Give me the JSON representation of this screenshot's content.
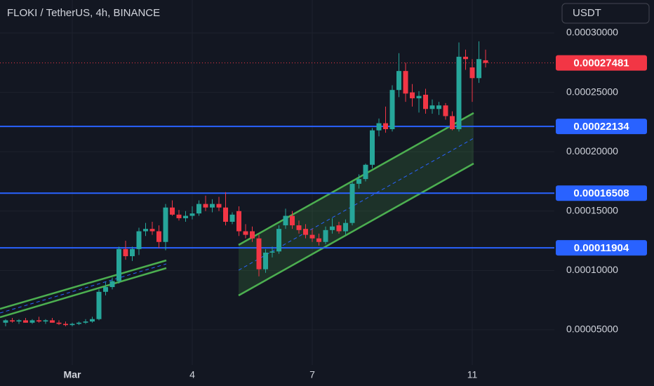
{
  "chart_data": {
    "type": "candlestick",
    "title": "FLOKI / TetherUS, 4h, BINANCE",
    "currency": "USDT",
    "categories": [
      null,
      null,
      null,
      null,
      null,
      null,
      null,
      null,
      null,
      null,
      "Mar",
      null,
      null,
      null,
      null,
      null,
      null,
      null,
      null,
      null,
      null,
      null,
      null,
      null,
      null,
      null,
      null,
      null,
      "4",
      null,
      null,
      null,
      null,
      null,
      null,
      null,
      null,
      null,
      null,
      null,
      null,
      null,
      null,
      null,
      null,
      null,
      "7",
      null,
      null,
      null,
      null,
      null,
      null,
      null,
      null,
      null,
      null,
      null,
      null,
      null,
      null,
      null,
      null,
      null,
      null,
      null,
      null,
      null,
      null,
      null,
      "11",
      null,
      null
    ],
    "open": [
      5.6e-05,
      5.8e-05,
      5.7e-05,
      5.8e-05,
      5.6e-05,
      5.8e-05,
      5.7e-05,
      5.8e-05,
      5.6e-05,
      5.5e-05,
      5.4e-05,
      5.5e-05,
      5.6e-05,
      5.7e-05,
      5.9e-05,
      8.2e-05,
      8.6e-05,
      9.1e-05,
      0.000118,
      0.000112,
      0.000118,
      0.000133,
      0.000135,
      0.000133,
      0.000124,
      0.000153,
      0.000147,
      0.000144,
      0.000146,
      0.000148,
      0.000156,
      0.000153,
      0.000156,
      0.000153,
      0.000141,
      0.00015,
      0.000133,
      0.000133,
      0.000127,
      0.000101,
      0.000115,
      0.000116,
      0.000138,
      0.000146,
      0.000138,
      0.000135,
      0.00013,
      0.000127,
      0.000124,
      0.000134,
      0.000138,
      0.000133,
      0.00014,
      0.000173,
      0.000177,
      0.000189,
      0.000218,
      0.000224,
      0.000219,
      0.000252,
      0.000268,
      0.00025,
      0.000245,
      0.000248,
      0.000236,
      0.000236,
      0.000239,
      0.00023,
      0.000219,
      0.00028,
      0.000271,
      0.000262,
      0.000277
    ],
    "high": [
      5.9e-05,
      6e-05,
      5.9e-05,
      6e-05,
      5.9e-05,
      6.1e-05,
      5.9e-05,
      6e-05,
      5.8e-05,
      5.7e-05,
      5.6e-05,
      5.7e-05,
      5.9e-05,
      6.1e-05,
      8.4e-05,
      9e-05,
      9.4e-05,
      0.00012,
      0.000125,
      0.00012,
      0.000136,
      0.00014,
      0.000141,
      0.000138,
      0.000156,
      0.000159,
      0.000151,
      0.00015,
      0.000154,
      0.000159,
      0.000163,
      0.00016,
      0.000162,
      0.000166,
      0.000149,
      0.000154,
      0.000139,
      0.000137,
      0.00013,
      0.000118,
      0.00012,
      0.000138,
      0.000152,
      0.00015,
      0.000142,
      0.000139,
      0.000135,
      0.000131,
      0.000137,
      0.000144,
      0.000141,
      0.000143,
      0.000175,
      0.000181,
      0.00019,
      0.00022,
      0.000228,
      0.000238,
      0.000256,
      0.000283,
      0.000275,
      0.000257,
      0.000251,
      0.000253,
      0.000244,
      0.000242,
      0.000241,
      0.000234,
      0.000292,
      0.000286,
      0.000278,
      0.000293,
      0.000286
    ],
    "low": [
      5.3e-05,
      5.6e-05,
      5.5e-05,
      5.6e-05,
      5.5e-05,
      5.6e-05,
      5.5e-05,
      5.6e-05,
      5.4e-05,
      5.3e-05,
      5.3e-05,
      5.4e-05,
      5.5e-05,
      5.6e-05,
      5.8e-05,
      7.9e-05,
      8.4e-05,
      8.9e-05,
      0.000109,
      0.000108,
      0.000113,
      0.000129,
      0.00013,
      0.000119,
      0.000117,
      0.000146,
      0.000142,
      0.000141,
      0.000143,
      0.000146,
      0.00015,
      0.000149,
      0.00015,
      0.000138,
      0.000139,
      0.000129,
      0.000127,
      0.000124,
      9.5e-05,
      9.8e-05,
      0.000111,
      0.000114,
      0.000135,
      0.000135,
      0.000131,
      0.000127,
      0.000124,
      0.000121,
      0.000122,
      0.000131,
      0.000131,
      0.00013,
      0.000138,
      0.000169,
      0.000175,
      0.000186,
      0.000213,
      0.000216,
      0.000217,
      0.000246,
      0.000242,
      0.000238,
      0.000233,
      0.000232,
      0.000232,
      0.000231,
      0.000227,
      0.000218,
      0.000217,
      0.000269,
      0.000242,
      0.000258,
      0.000271
    ],
    "close": [
      5.8e-05,
      5.7e-05,
      5.8e-05,
      5.6e-05,
      5.8e-05,
      5.7e-05,
      5.8e-05,
      5.6e-05,
      5.5e-05,
      5.4e-05,
      5.5e-05,
      5.6e-05,
      5.7e-05,
      5.9e-05,
      8.2e-05,
      8.6e-05,
      9.1e-05,
      0.000118,
      0.000112,
      0.000118,
      0.000133,
      0.000135,
      0.000133,
      0.000124,
      0.000153,
      0.000147,
      0.000144,
      0.000146,
      0.000148,
      0.000156,
      0.000153,
      0.000156,
      0.000153,
      0.000141,
      0.000147,
      0.000133,
      0.00013,
      0.000127,
      0.000101,
      0.000115,
      0.000116,
      0.000135,
      0.000146,
      0.000138,
      0.000134,
      0.00013,
      0.000127,
      0.000124,
      0.000134,
      0.000137,
      0.000133,
      0.00014,
      0.000173,
      0.000177,
      0.000189,
      0.000218,
      0.000224,
      0.000219,
      0.000252,
      0.000268,
      0.000249,
      0.000245,
      0.000247,
      0.000236,
      0.000239,
      0.000239,
      0.00023,
      0.000219,
      0.00028,
      0.000278,
      0.000262,
      0.000278,
      0.00027481
    ],
    "up_color": "#26a69a",
    "down_color": "#f23645",
    "ylim": [
      2.04e-05,
      0.0003278
    ],
    "yticks": [
      {
        "value": 5e-05,
        "label": "0.00005000"
      },
      {
        "value": 0.0001,
        "label": "0.00010000"
      },
      {
        "value": 0.00015,
        "label": "0.00015000"
      },
      {
        "value": 0.0002,
        "label": "0.00020000"
      },
      {
        "value": 0.00025,
        "label": "0.00025000"
      },
      {
        "value": 0.0003,
        "label": "0.00030000"
      }
    ],
    "grid": true,
    "price_lines": [
      {
        "value": 0.00022134,
        "color": "#2962ff"
      },
      {
        "value": 0.00016508,
        "color": "#2962ff"
      },
      {
        "value": 0.00011904,
        "color": "#2962ff"
      }
    ],
    "current_price": {
      "value": 0.00027481,
      "color": "#f23645"
    }
  }
}
